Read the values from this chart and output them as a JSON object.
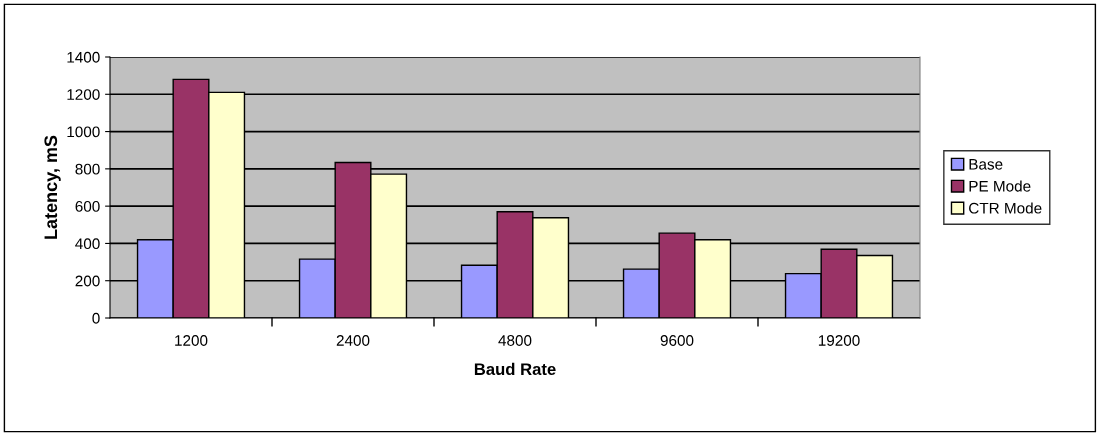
{
  "chart_data": {
    "type": "bar",
    "xlabel": "Baud Rate",
    "ylabel": "Latency, mS",
    "categories": [
      "1200",
      "2400",
      "4800",
      "9600",
      "19200"
    ],
    "series": [
      {
        "name": "Base",
        "color": "#9999ff",
        "values": [
          420,
          316,
          283,
          262,
          238
        ]
      },
      {
        "name": "PE Mode",
        "color": "#993366",
        "values": [
          1280,
          834,
          570,
          455,
          369
        ]
      },
      {
        "name": "CTR Mode",
        "color": "#ffffcc",
        "values": [
          1210,
          772,
          538,
          420,
          335
        ]
      }
    ],
    "ylim": [
      0,
      1400
    ],
    "yticks": [
      0,
      200,
      400,
      600,
      800,
      1000,
      1200,
      1400
    ],
    "grid": "y",
    "legend": "right"
  }
}
